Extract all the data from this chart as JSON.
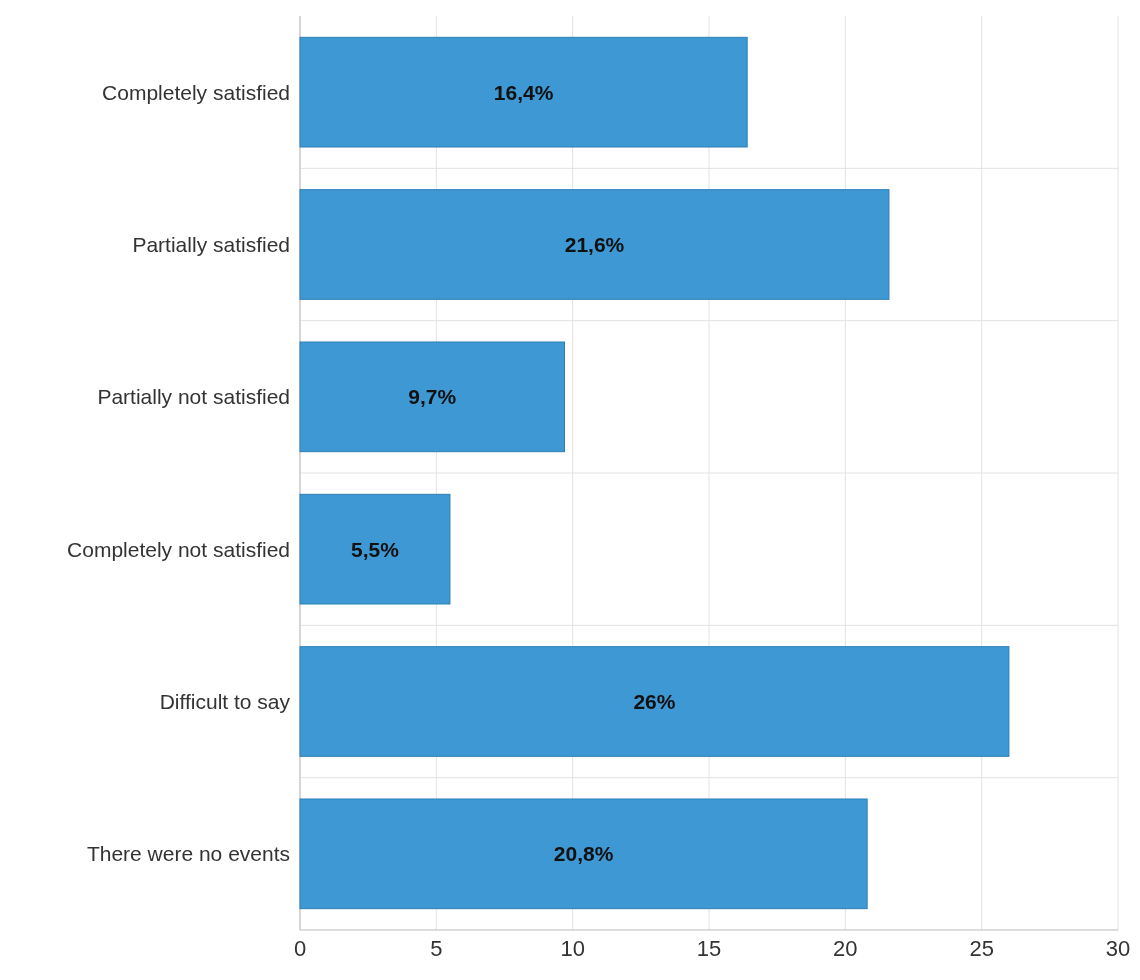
{
  "chart_data": {
    "type": "bar",
    "orientation": "horizontal",
    "categories": [
      "Completely satisfied",
      "Partially satisfied",
      "Partially not satisfied",
      "Completely  not satisfied",
      "Difficult to say",
      "There were no events"
    ],
    "values": [
      16.4,
      21.6,
      9.7,
      5.5,
      26,
      20.8
    ],
    "value_labels": [
      "16,4%",
      "21,6%",
      "9,7%",
      "5,5%",
      "26%",
      "20,8%"
    ],
    "color": "#3d98d4",
    "xlim": [
      0,
      30
    ],
    "xticks": [
      0,
      5,
      10,
      15,
      20,
      25,
      30
    ],
    "grid": true
  }
}
